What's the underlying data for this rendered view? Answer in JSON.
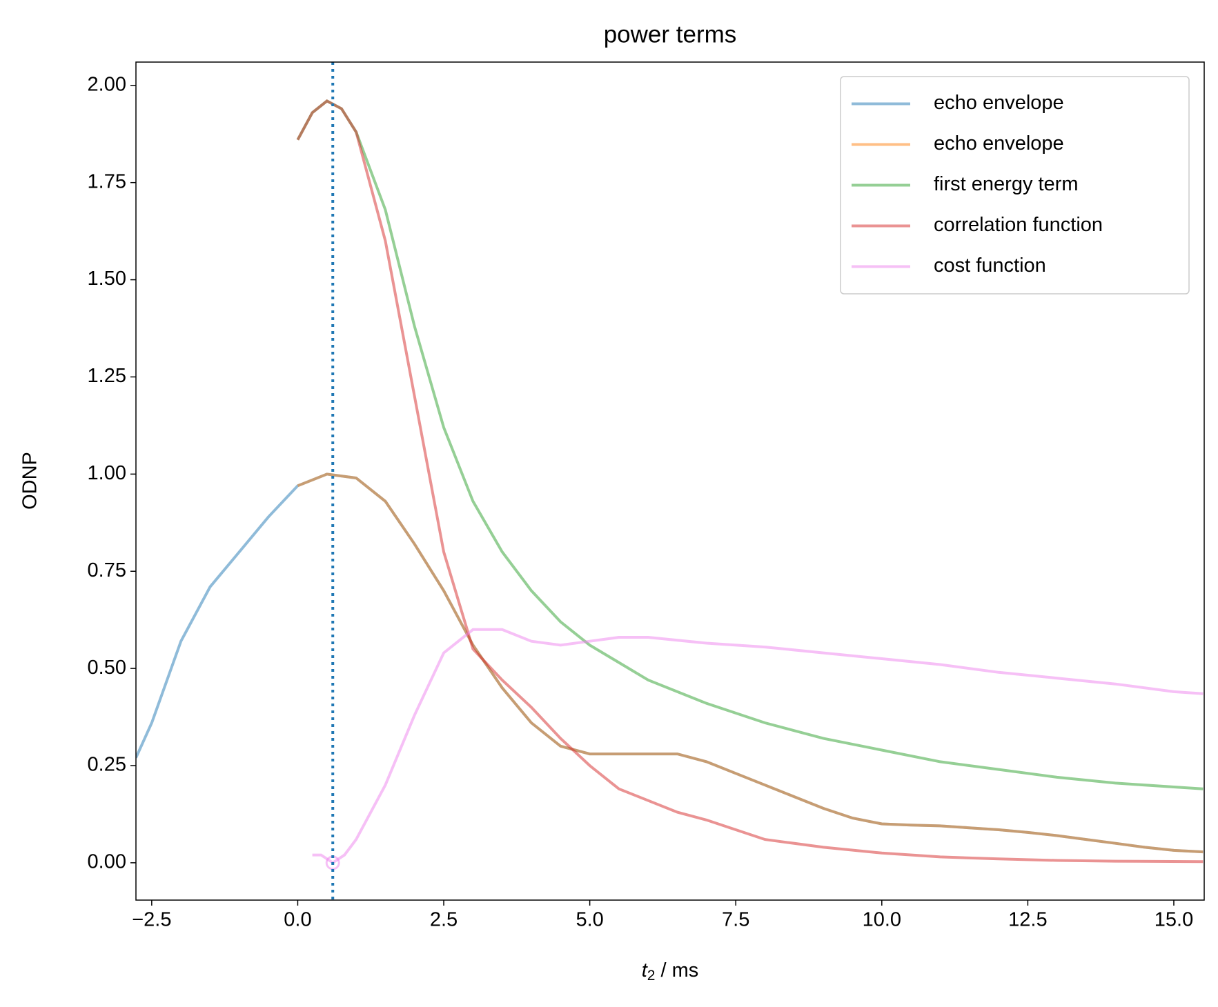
{
  "chart_data": {
    "type": "line",
    "title": "power terms",
    "xlabel_symbol": "t",
    "xlabel_subscript": "2",
    "xlabel_unit": " / ms",
    "ylabel": "ODNP",
    "xlim": [
      -2.77,
      15.52
    ],
    "ylim": [
      -0.096,
      2.06
    ],
    "xticks": [
      {
        "value": -2.5,
        "label": "−2.5"
      },
      {
        "value": 0,
        "label": "0.0"
      },
      2.5,
      {
        "value": 5,
        "label": "5.0"
      },
      7.5,
      {
        "value": 10,
        "label": "10.0"
      },
      12.5,
      {
        "value": 15,
        "label": "15.0"
      }
    ],
    "yticks": [
      {
        "value": 0,
        "label": "0.00"
      },
      {
        "value": 0.25,
        "label": "0.25"
      },
      {
        "value": 0.5,
        "label": "0.50"
      },
      {
        "value": 0.75,
        "label": "0.75"
      },
      {
        "value": 1,
        "label": "1.00"
      },
      {
        "value": 1.25,
        "label": "1.25"
      },
      {
        "value": 1.5,
        "label": "1.50"
      },
      {
        "value": 1.75,
        "label": "1.75"
      },
      {
        "value": 2,
        "label": "2.00"
      }
    ],
    "alpha": 0.5,
    "legend": "upper right",
    "series": [
      {
        "name": "echo envelope",
        "color": "#1f77b4",
        "x": [
          -2.77,
          -2.5,
          -2,
          -1.5,
          -1,
          -0.5,
          0,
          0.5,
          1,
          1.5,
          2,
          2.5,
          3,
          3.5,
          4,
          4.5,
          5,
          5.5,
          6,
          6.5,
          7,
          7.5,
          8,
          8.5,
          9,
          9.5,
          10,
          10.5,
          11,
          11.5,
          12,
          12.5,
          13,
          13.5,
          14,
          14.5,
          15,
          15.5
        ],
        "values": [
          0.27,
          0.36,
          0.57,
          0.71,
          0.8,
          0.89,
          0.97,
          1.0,
          0.99,
          0.93,
          0.82,
          0.7,
          0.56,
          0.45,
          0.36,
          0.3,
          0.28,
          0.28,
          0.28,
          0.28,
          0.26,
          0.23,
          0.2,
          0.17,
          0.14,
          0.115,
          0.1,
          0.097,
          0.095,
          0.09,
          0.085,
          0.078,
          0.07,
          0.06,
          0.05,
          0.04,
          0.032,
          0.028
        ]
      },
      {
        "name": "echo envelope",
        "color": "#ff7f0e",
        "x": [
          0,
          0.5,
          1,
          1.5,
          2,
          2.5,
          3,
          3.5,
          4,
          4.5,
          5,
          5.5,
          6,
          6.5,
          7,
          7.5,
          8,
          8.5,
          9,
          9.5,
          10,
          10.5,
          11,
          11.5,
          12,
          12.5,
          13,
          13.5,
          14,
          14.5,
          15,
          15.5
        ],
        "values": [
          0.97,
          1.0,
          0.99,
          0.93,
          0.82,
          0.7,
          0.56,
          0.45,
          0.36,
          0.3,
          0.28,
          0.28,
          0.28,
          0.28,
          0.26,
          0.23,
          0.2,
          0.17,
          0.14,
          0.115,
          0.1,
          0.097,
          0.095,
          0.09,
          0.085,
          0.078,
          0.07,
          0.06,
          0.05,
          0.04,
          0.032,
          0.028
        ]
      },
      {
        "name": "first energy term",
        "color": "#2ca02c",
        "x": [
          0,
          0.25,
          0.5,
          0.75,
          1,
          1.5,
          2,
          2.5,
          3,
          3.5,
          4,
          4.5,
          5,
          6,
          7,
          8,
          9,
          10,
          11,
          12,
          13,
          14,
          15,
          15.5
        ],
        "values": [
          1.86,
          1.93,
          1.96,
          1.94,
          1.88,
          1.68,
          1.38,
          1.12,
          0.93,
          0.8,
          0.7,
          0.62,
          0.56,
          0.47,
          0.41,
          0.36,
          0.32,
          0.29,
          0.26,
          0.24,
          0.22,
          0.205,
          0.195,
          0.19
        ]
      },
      {
        "name": "correlation function",
        "color": "#d62728",
        "x": [
          0,
          0.25,
          0.5,
          0.75,
          1,
          1.5,
          2,
          2.5,
          3,
          3.5,
          4,
          4.5,
          5,
          5.5,
          6,
          6.5,
          7,
          7.5,
          8,
          9,
          10,
          11,
          12,
          13,
          14,
          15.5
        ],
        "values": [
          1.86,
          1.93,
          1.96,
          1.94,
          1.88,
          1.6,
          1.2,
          0.8,
          0.55,
          0.47,
          0.4,
          0.32,
          0.25,
          0.19,
          0.16,
          0.13,
          0.11,
          0.085,
          0.06,
          0.04,
          0.025,
          0.015,
          0.01,
          0.006,
          0.004,
          0.003
        ]
      },
      {
        "name": "cost function",
        "color": "#ee82ee",
        "x": [
          0.25,
          0.4,
          0.6,
          0.8,
          1,
          1.5,
          2,
          2.5,
          3,
          3.5,
          4,
          4.5,
          5,
          5.5,
          6,
          7,
          8,
          9,
          10,
          11,
          12,
          13,
          14,
          15,
          15.5
        ],
        "values": [
          0.02,
          0.02,
          0,
          0.02,
          0.06,
          0.2,
          0.38,
          0.54,
          0.6,
          0.6,
          0.57,
          0.56,
          0.57,
          0.58,
          0.58,
          0.565,
          0.555,
          0.54,
          0.525,
          0.51,
          0.49,
          0.475,
          0.46,
          0.44,
          0.435
        ]
      }
    ],
    "marker": {
      "x": 0.6,
      "y": 0,
      "color": "#ee82ee"
    },
    "vline": {
      "x": 0.6,
      "color": "#1f77b4",
      "style": "dotted"
    }
  }
}
